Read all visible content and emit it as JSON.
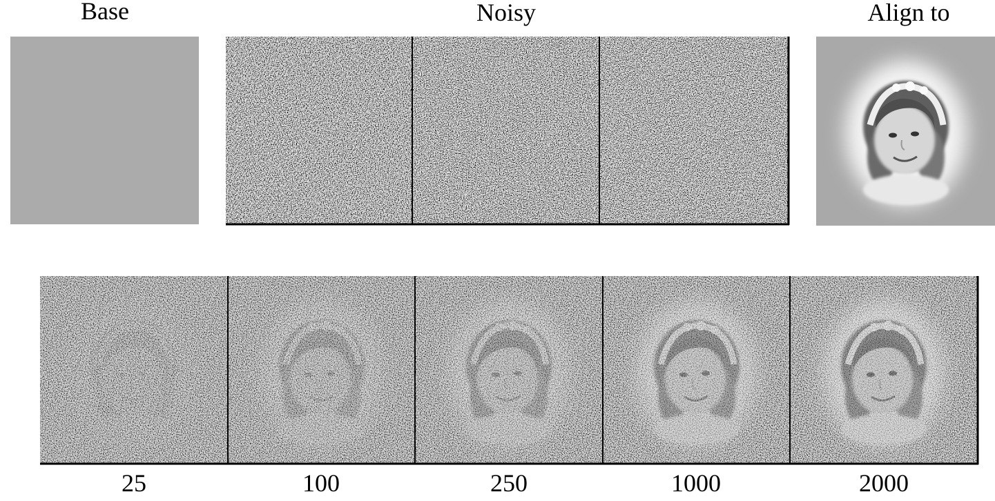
{
  "figure": {
    "top_titles": [
      "Base",
      "Noisy",
      "Align to"
    ],
    "bottom_labels": [
      "25",
      "100",
      "250",
      "1000",
      "2000"
    ]
  }
}
